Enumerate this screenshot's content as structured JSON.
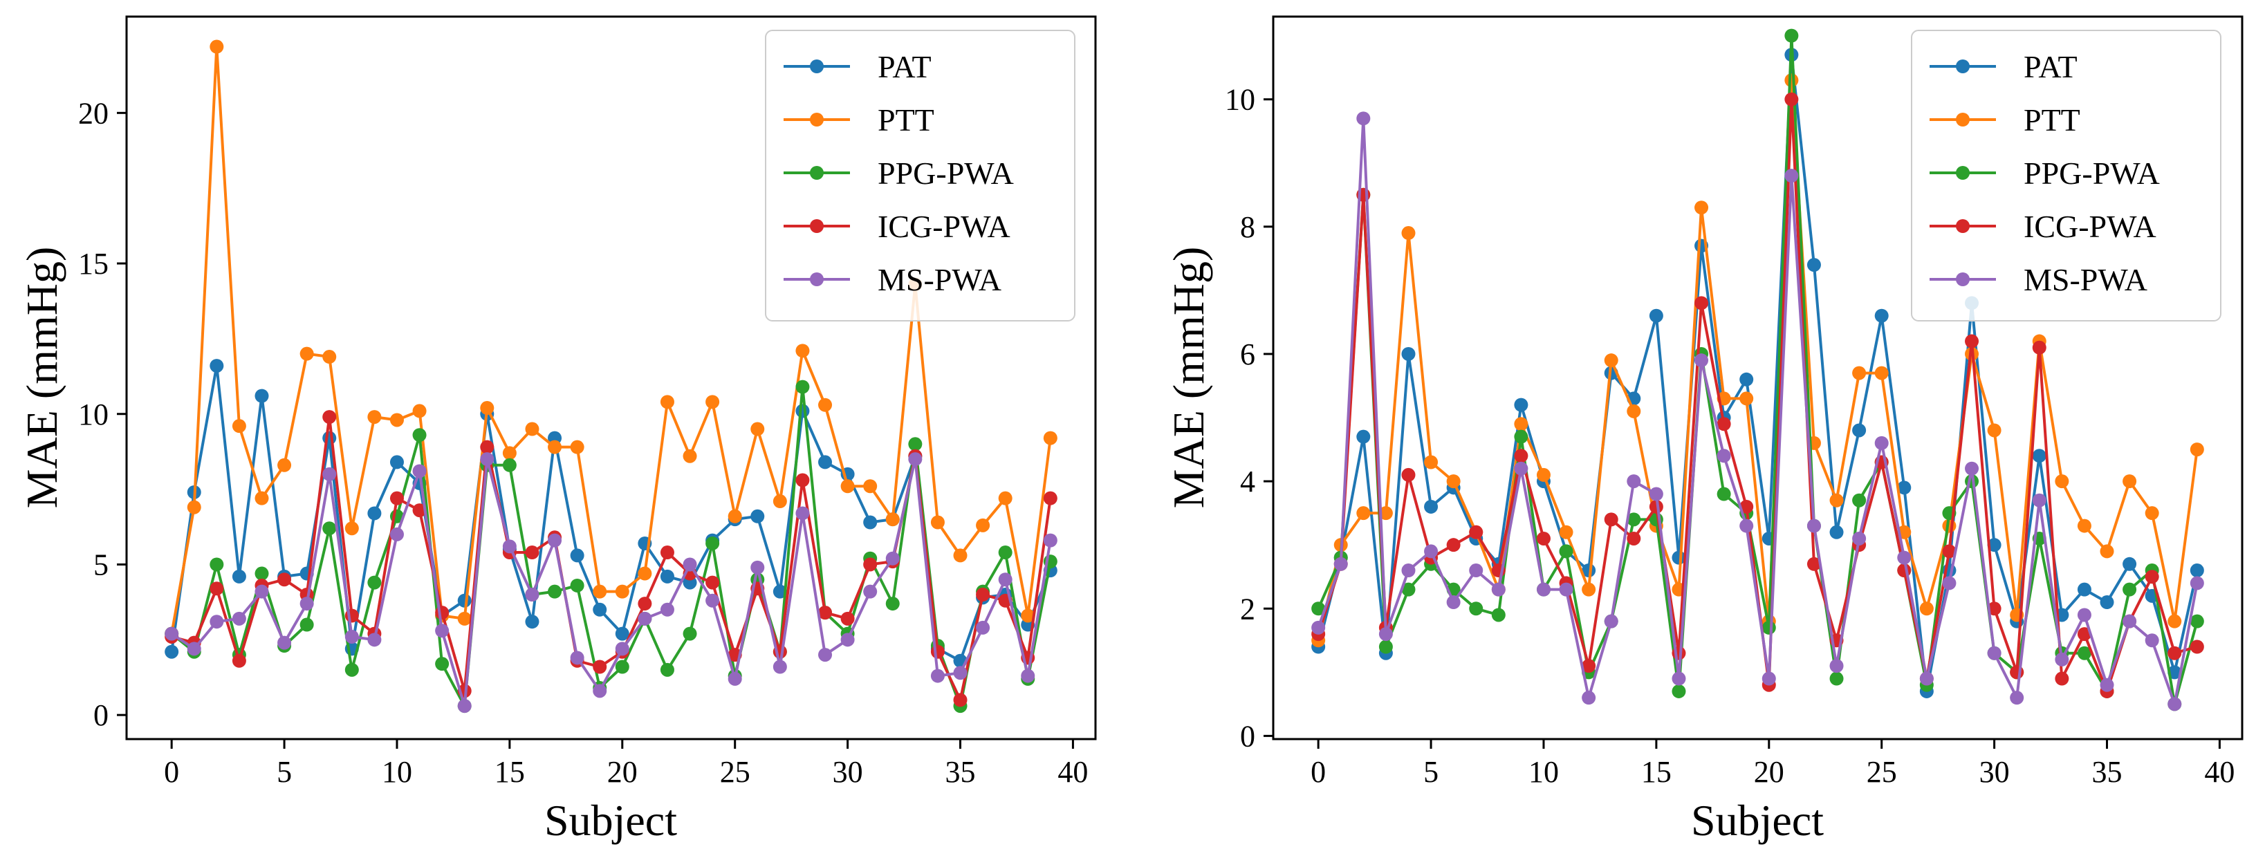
{
  "chart_data": [
    {
      "type": "line",
      "xlabel": "Subject",
      "ylabel": "MAE (mmHg)",
      "xlim": [
        -2,
        41
      ],
      "ylim": [
        -0.8,
        23.2
      ],
      "xticks": [
        0,
        5,
        10,
        15,
        20,
        25,
        30,
        35,
        40
      ],
      "yticks": [
        0,
        5,
        10,
        15,
        20
      ],
      "legend_position": "top-right",
      "x": [
        0,
        1,
        2,
        3,
        4,
        5,
        6,
        7,
        8,
        9,
        10,
        11,
        12,
        13,
        14,
        15,
        16,
        17,
        18,
        19,
        20,
        21,
        22,
        23,
        24,
        25,
        26,
        27,
        28,
        29,
        30,
        31,
        32,
        33,
        34,
        35,
        36,
        37,
        38,
        39
      ],
      "series": [
        {
          "name": "PAT",
          "color": "#1f77b4",
          "values": [
            2.1,
            7.4,
            11.6,
            4.6,
            10.6,
            4.6,
            4.7,
            9.2,
            2.2,
            6.7,
            8.4,
            7.7,
            3.3,
            3.8,
            10.0,
            5.5,
            3.1,
            9.2,
            5.3,
            3.5,
            2.7,
            5.7,
            4.6,
            4.4,
            5.8,
            6.5,
            6.6,
            4.1,
            10.1,
            8.4,
            8.0,
            6.4,
            6.5,
            8.6,
            2.2,
            1.8,
            3.9,
            4.0,
            3.0,
            4.8
          ]
        },
        {
          "name": "PTT",
          "color": "#ff7f0e",
          "values": [
            2.7,
            6.9,
            22.2,
            9.6,
            7.2,
            8.3,
            12.0,
            11.9,
            6.2,
            9.9,
            9.8,
            10.1,
            3.3,
            3.2,
            10.2,
            8.7,
            9.5,
            8.9,
            8.9,
            4.1,
            4.1,
            4.7,
            10.4,
            8.6,
            10.4,
            6.6,
            9.5,
            7.1,
            12.1,
            10.3,
            7.6,
            7.6,
            6.5,
            14.3,
            6.4,
            5.3,
            6.3,
            7.2,
            3.3,
            9.2
          ]
        },
        {
          "name": "PPG-PWA",
          "color": "#2ca02c",
          "values": [
            2.7,
            2.1,
            5.0,
            2.0,
            4.7,
            2.3,
            3.0,
            6.2,
            1.5,
            4.4,
            6.6,
            9.3,
            1.7,
            0.3,
            8.3,
            8.3,
            4.0,
            4.1,
            4.3,
            0.9,
            1.6,
            3.2,
            1.5,
            2.7,
            5.7,
            1.3,
            4.5,
            2.1,
            10.9,
            3.4,
            2.7,
            5.2,
            3.7,
            9.0,
            2.3,
            0.3,
            4.1,
            5.4,
            1.2,
            5.1
          ]
        },
        {
          "name": "ICG-PWA",
          "color": "#d62728",
          "values": [
            2.6,
            2.4,
            4.2,
            1.8,
            4.3,
            4.5,
            4.0,
            9.9,
            3.3,
            2.7,
            7.2,
            6.8,
            3.4,
            0.8,
            8.9,
            5.4,
            5.4,
            5.9,
            1.8,
            1.6,
            2.1,
            3.7,
            5.4,
            4.7,
            4.4,
            2.0,
            4.2,
            2.1,
            7.8,
            3.4,
            3.2,
            5.0,
            5.1,
            8.6,
            2.1,
            0.5,
            4.0,
            3.8,
            1.9,
            7.2
          ]
        },
        {
          "name": "MS-PWA",
          "color": "#9467bd",
          "values": [
            2.7,
            2.2,
            3.1,
            3.2,
            4.1,
            2.4,
            3.7,
            8.0,
            2.6,
            2.5,
            6.0,
            8.1,
            2.8,
            0.3,
            8.5,
            5.6,
            4.0,
            5.8,
            1.9,
            0.8,
            2.2,
            3.2,
            3.5,
            5.0,
            3.8,
            1.2,
            4.9,
            1.6,
            6.7,
            2.0,
            2.5,
            4.1,
            5.2,
            8.5,
            1.3,
            1.4,
            2.9,
            4.5,
            1.3,
            5.8
          ]
        }
      ]
    },
    {
      "type": "line",
      "xlabel": "Subject",
      "ylabel": "MAE (mmHg)",
      "xlim": [
        -2,
        41
      ],
      "ylim": [
        -0.05,
        11.3
      ],
      "xticks": [
        0,
        5,
        10,
        15,
        20,
        25,
        30,
        35,
        40
      ],
      "yticks": [
        0,
        2,
        4,
        6,
        8,
        10
      ],
      "legend_position": "top-right",
      "x": [
        0,
        1,
        2,
        3,
        4,
        5,
        6,
        7,
        8,
        9,
        10,
        11,
        12,
        13,
        14,
        15,
        16,
        17,
        18,
        19,
        20,
        21,
        22,
        23,
        24,
        25,
        26,
        27,
        28,
        29,
        30,
        31,
        32,
        33,
        34,
        35,
        36,
        37,
        38,
        39
      ],
      "series": [
        {
          "name": "PAT",
          "color": "#1f77b4",
          "values": [
            1.4,
            2.8,
            4.7,
            1.3,
            6.0,
            3.6,
            3.9,
            3.1,
            2.7,
            5.2,
            4.0,
            2.9,
            2.6,
            5.7,
            5.3,
            6.6,
            2.8,
            7.7,
            5.0,
            5.6,
            3.1,
            10.7,
            7.4,
            3.2,
            4.8,
            6.6,
            3.9,
            0.7,
            2.6,
            6.8,
            3.0,
            1.8,
            4.4,
            1.9,
            2.3,
            2.1,
            2.7,
            2.2,
            1.0,
            2.6
          ]
        },
        {
          "name": "PTT",
          "color": "#ff7f0e",
          "values": [
            1.5,
            3.0,
            3.5,
            3.5,
            7.9,
            4.3,
            4.0,
            3.2,
            2.3,
            4.9,
            4.1,
            3.2,
            2.3,
            5.9,
            5.1,
            3.3,
            2.3,
            8.3,
            5.3,
            5.3,
            1.8,
            10.3,
            4.6,
            3.7,
            5.7,
            5.7,
            3.2,
            2.0,
            3.3,
            6.0,
            4.8,
            1.9,
            6.2,
            4.0,
            3.3,
            2.9,
            4.0,
            3.5,
            1.8,
            4.5
          ]
        },
        {
          "name": "PPG-PWA",
          "color": "#2ca02c",
          "values": [
            2.0,
            2.8,
            8.5,
            1.4,
            2.3,
            2.7,
            2.3,
            2.0,
            1.9,
            4.7,
            2.3,
            2.9,
            1.0,
            1.8,
            3.4,
            3.4,
            0.7,
            6.0,
            3.8,
            3.5,
            1.7,
            11.0,
            3.3,
            0.9,
            3.7,
            4.3,
            2.6,
            0.8,
            3.5,
            4.0,
            1.3,
            1.0,
            3.1,
            1.3,
            1.3,
            0.7,
            2.3,
            2.6,
            0.5,
            1.8
          ]
        },
        {
          "name": "ICG-PWA",
          "color": "#d62728",
          "values": [
            1.6,
            2.7,
            8.5,
            1.7,
            4.1,
            2.8,
            3.0,
            3.2,
            2.6,
            4.4,
            3.1,
            2.4,
            1.1,
            3.4,
            3.1,
            3.6,
            1.3,
            6.8,
            4.9,
            3.6,
            0.8,
            10.0,
            2.7,
            1.5,
            3.0,
            4.3,
            2.6,
            0.9,
            2.9,
            6.2,
            2.0,
            1.0,
            6.1,
            0.9,
            1.6,
            0.7,
            1.8,
            2.5,
            1.3,
            1.4
          ]
        },
        {
          "name": "MS-PWA",
          "color": "#9467bd",
          "values": [
            1.7,
            2.7,
            9.7,
            1.6,
            2.6,
            2.9,
            2.1,
            2.6,
            2.3,
            4.2,
            2.3,
            2.3,
            0.6,
            1.8,
            4.0,
            3.8,
            0.9,
            5.9,
            4.4,
            3.3,
            0.9,
            8.8,
            3.3,
            1.1,
            3.1,
            4.6,
            2.8,
            0.9,
            2.4,
            4.2,
            1.3,
            0.6,
            3.7,
            1.2,
            1.9,
            0.8,
            1.8,
            1.5,
            0.5,
            2.4
          ]
        }
      ]
    }
  ]
}
